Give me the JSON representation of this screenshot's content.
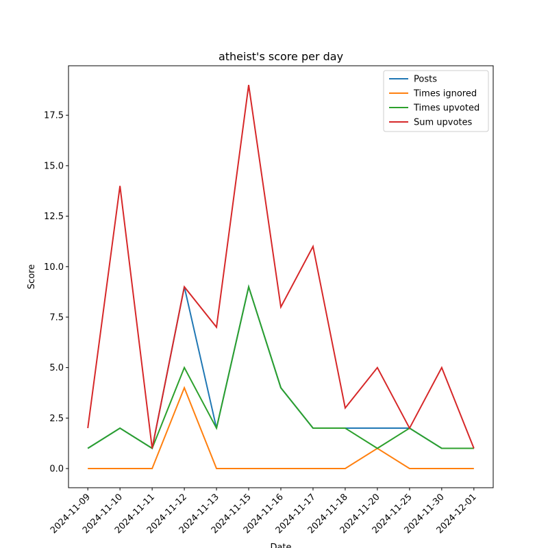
{
  "chart_data": {
    "type": "line",
    "title": "atheist's score per day",
    "x_label": "Date",
    "y_label": "Score",
    "categories": [
      "2024-11-09",
      "2024-11-10",
      "2024-11-11",
      "2024-11-12",
      "2024-11-13",
      "2024-11-15",
      "2024-11-16",
      "2024-11-17",
      "2024-11-18",
      "2024-11-20",
      "2024-11-25",
      "2024-11-30",
      "2024-12-01"
    ],
    "series": [
      {
        "name": "Posts",
        "color": "#1f77b4",
        "values": [
          1,
          2,
          1,
          9,
          2,
          9,
          4,
          2,
          2,
          2,
          2,
          1,
          1
        ]
      },
      {
        "name": "Times ignored",
        "color": "#ff7f0e",
        "values": [
          0,
          0,
          0,
          4,
          0,
          0,
          0,
          0,
          0,
          1,
          0,
          0,
          0
        ]
      },
      {
        "name": "Times upvoted",
        "color": "#2ca02c",
        "values": [
          1,
          2,
          1,
          5,
          2,
          9,
          4,
          2,
          2,
          1,
          2,
          1,
          1
        ]
      },
      {
        "name": "Sum upvotes",
        "color": "#d62728",
        "values": [
          2,
          14,
          1,
          9,
          7,
          19,
          8,
          11,
          3,
          5,
          2,
          5,
          1
        ]
      }
    ],
    "ylim": [
      -0.95,
      19.95
    ],
    "yticks": [
      {
        "value": 0,
        "label": "0.0"
      },
      2.5,
      {
        "value": 5,
        "label": "5.0"
      },
      7.5,
      {
        "value": 10,
        "label": "10.0"
      },
      12.5,
      {
        "value": 15,
        "label": "15.0"
      },
      17.5
    ],
    "legend": "upper right",
    "grid": false
  }
}
